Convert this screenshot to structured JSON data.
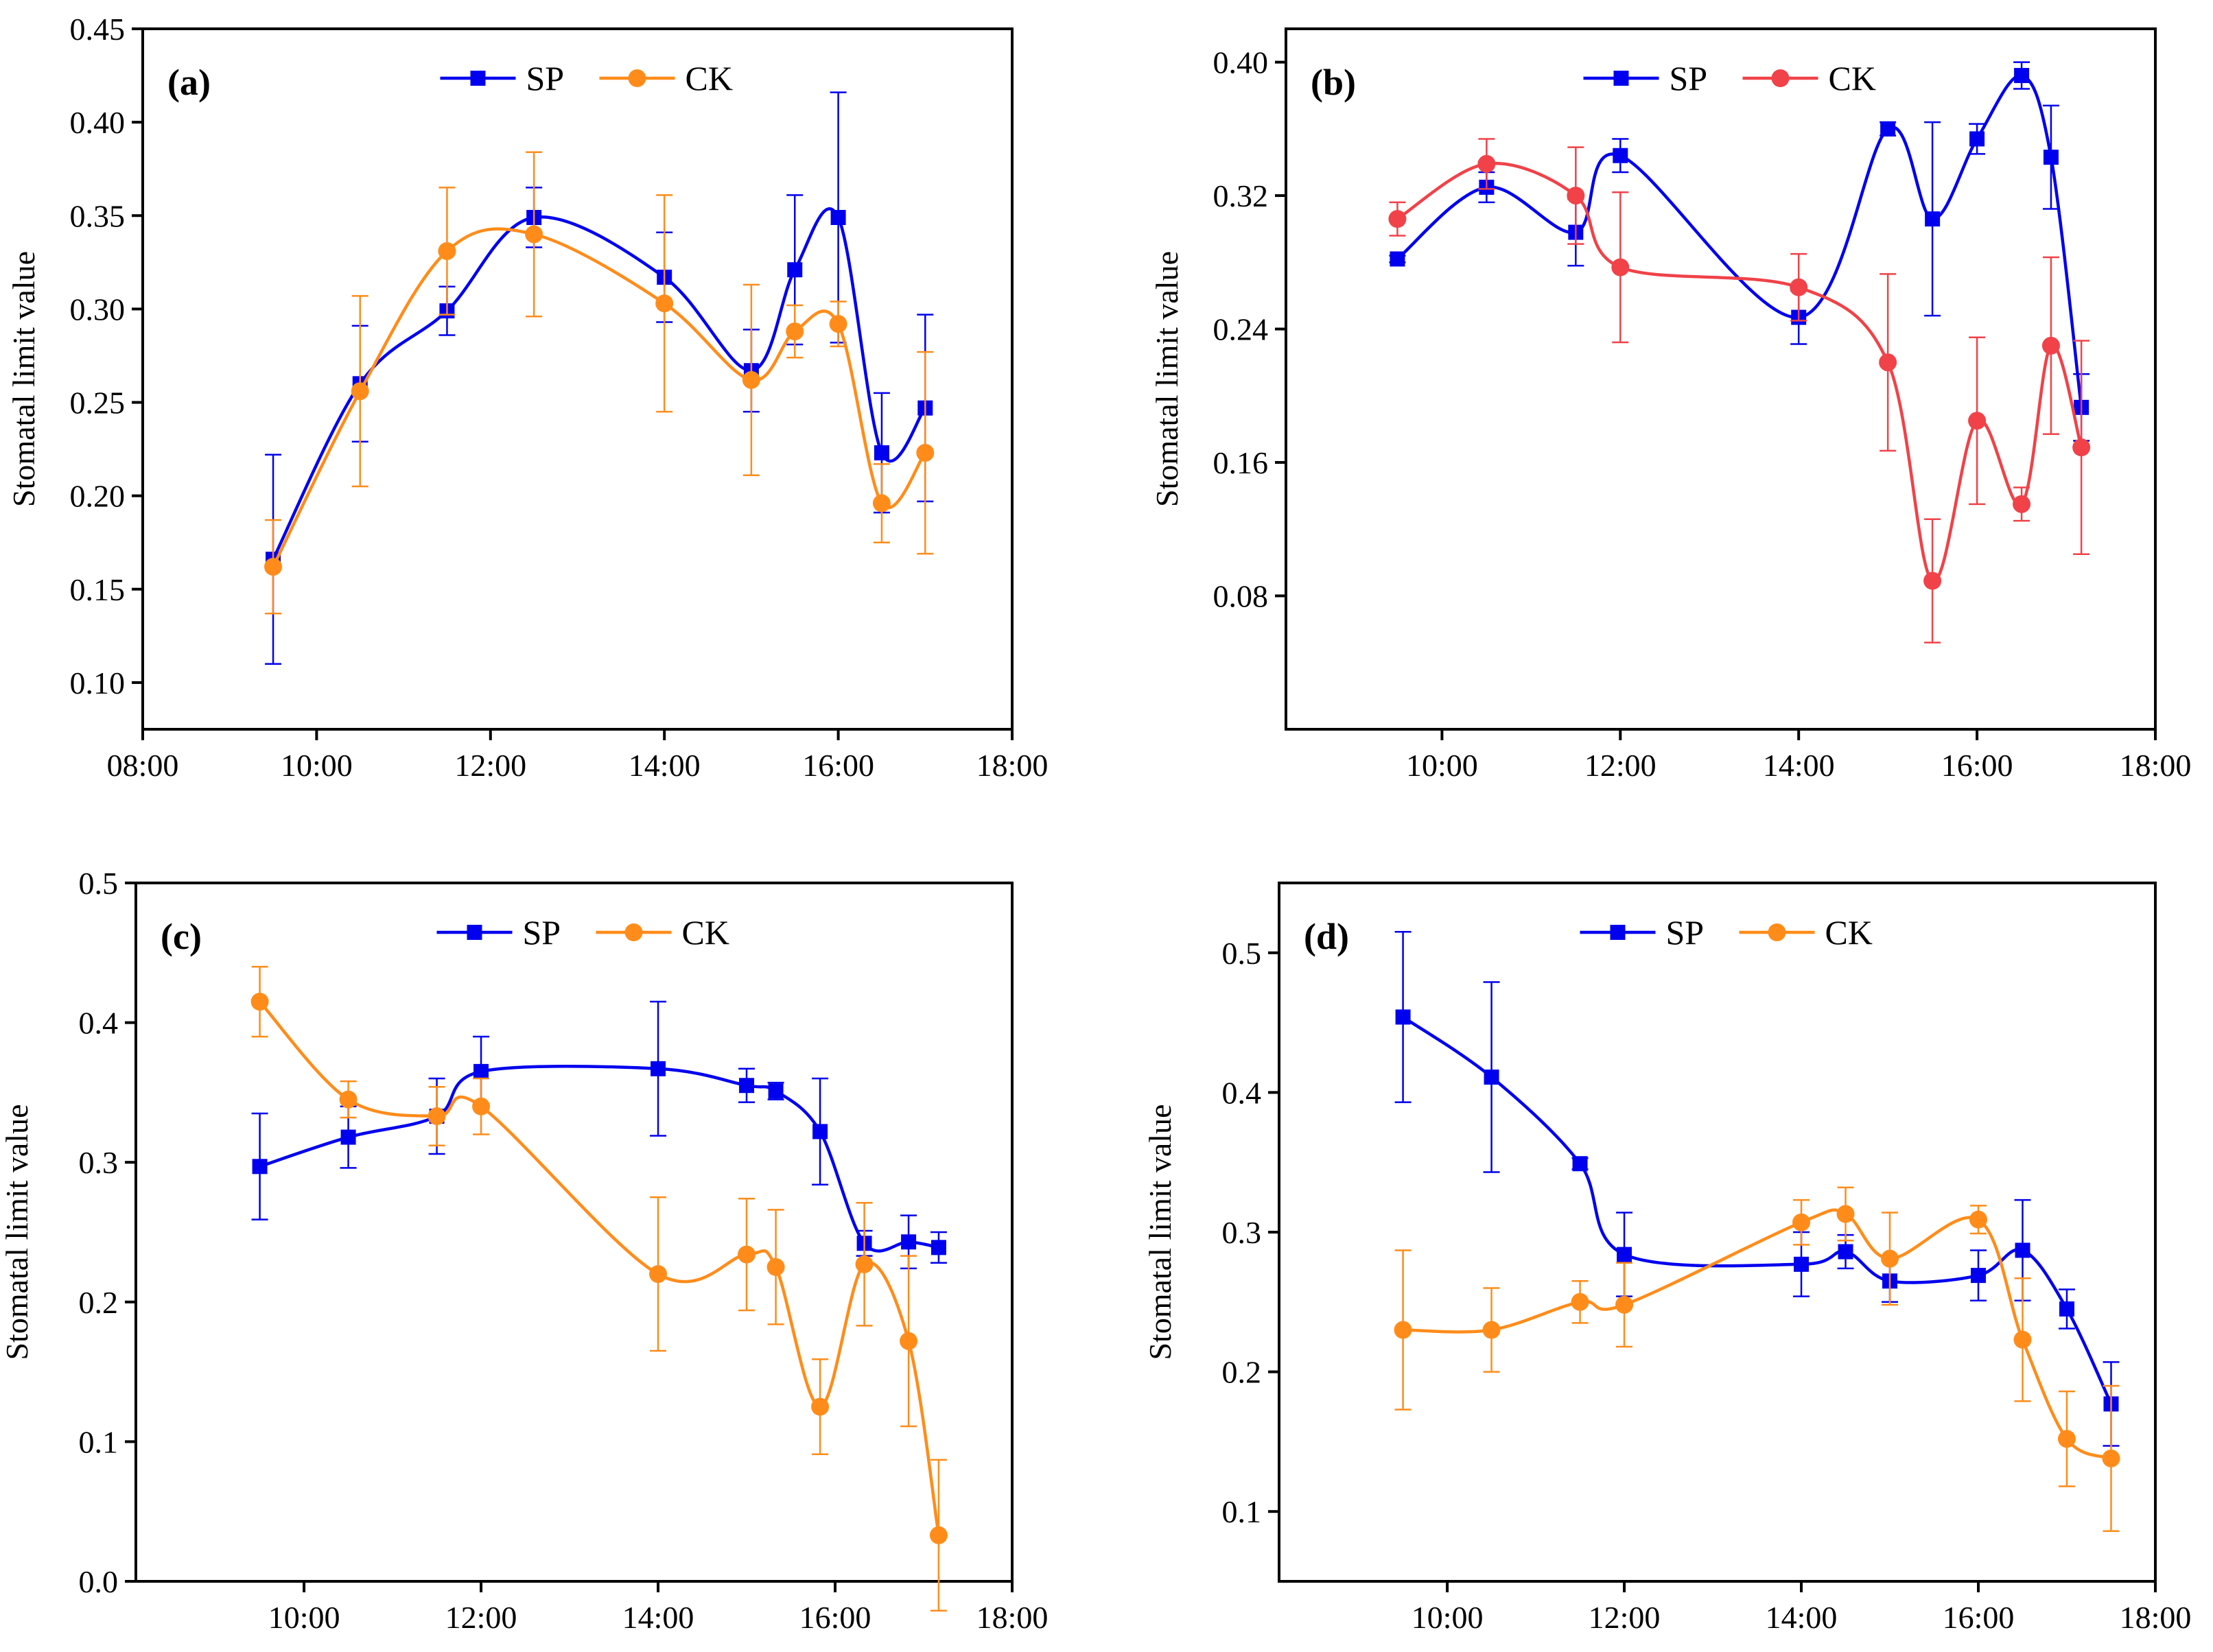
{
  "colors": {
    "SP": "#0000ee",
    "CK_orange": "#ff8c1a",
    "CK_red": "#f04248",
    "axis": "#000000"
  },
  "chart_data": [
    {
      "type": "line",
      "panel_label": "(a)",
      "ylabel": "Stomatal limit value",
      "xlim": [
        8,
        18
      ],
      "xticks": [
        8,
        10,
        12,
        14,
        16,
        18
      ],
      "xtick_labels": [
        "08:00",
        "10:00",
        "12:00",
        "14:00",
        "16:00",
        "18:00"
      ],
      "ylim": [
        0.075,
        0.45
      ],
      "yticks": [
        0.1,
        0.15,
        0.2,
        0.25,
        0.3,
        0.35,
        0.4,
        0.45
      ],
      "ytick_labels": [
        "0.10",
        "0.15",
        "0.20",
        "0.25",
        "0.30",
        "0.35",
        "0.40",
        "0.45"
      ],
      "legend_position": "top-center",
      "series": [
        {
          "name": "SP",
          "color": "#0000ee",
          "marker": "square",
          "x": [
            9.5,
            10.5,
            11.5,
            12.5,
            14,
            15,
            15.5,
            16,
            16.5,
            17
          ],
          "y": [
            0.166,
            0.26,
            0.299,
            0.349,
            0.317,
            0.267,
            0.321,
            0.349,
            0.223,
            0.247
          ],
          "err": [
            0.056,
            0.031,
            0.013,
            0.016,
            0.024,
            0.022,
            0.04,
            0.067,
            0.032,
            0.05
          ]
        },
        {
          "name": "CK",
          "color": "#ff8c1a",
          "marker": "circle",
          "x": [
            9.5,
            10.5,
            11.5,
            12.5,
            14,
            15,
            15.5,
            16,
            16.5,
            17
          ],
          "y": [
            0.162,
            0.256,
            0.331,
            0.34,
            0.303,
            0.262,
            0.288,
            0.292,
            0.196,
            0.223
          ],
          "err": [
            0.025,
            0.051,
            0.034,
            0.044,
            0.058,
            0.051,
            0.014,
            0.012,
            0.021,
            0.054
          ]
        }
      ]
    },
    {
      "type": "line",
      "panel_label": "(b)",
      "ylabel": "Stomatal limit value",
      "xlim": [
        8.25,
        18
      ],
      "xticks": [
        10,
        12,
        14,
        16,
        18
      ],
      "xtick_labels": [
        "10:00",
        "12:00",
        "14:00",
        "16:00",
        "18:00"
      ],
      "ylim": [
        0.0,
        0.42
      ],
      "yticks": [
        0.08,
        0.16,
        0.24,
        0.32,
        0.4
      ],
      "ytick_labels": [
        "0.08",
        "0.16",
        "0.24",
        "0.32",
        "0.40"
      ],
      "legend_position": "top-center",
      "series": [
        {
          "name": "SP",
          "color": "#0000ee",
          "marker": "square",
          "x": [
            9.5,
            10.5,
            11.5,
            12,
            14,
            15,
            15.5,
            16,
            16.5,
            16.83,
            17.17
          ],
          "y": [
            0.282,
            0.325,
            0.298,
            0.344,
            0.247,
            0.36,
            0.306,
            0.354,
            0.392,
            0.343,
            0.193
          ],
          "err": [
            0.002,
            0.009,
            0.02,
            0.01,
            0.016,
            0.004,
            0.058,
            0.009,
            0.008,
            0.031,
            0.02
          ]
        },
        {
          "name": "CK",
          "color": "#f04248",
          "marker": "circle",
          "x": [
            9.5,
            10.5,
            11.5,
            12,
            14,
            15,
            15.5,
            16,
            16.5,
            16.83,
            17.17
          ],
          "y": [
            0.306,
            0.339,
            0.32,
            0.277,
            0.265,
            0.22,
            0.089,
            0.185,
            0.135,
            0.23,
            0.169
          ],
          "err": [
            0.01,
            0.015,
            0.029,
            0.045,
            0.02,
            0.053,
            0.037,
            0.05,
            0.01,
            0.053,
            0.064
          ]
        }
      ]
    },
    {
      "type": "line",
      "panel_label": "(c)",
      "ylabel": "Stomatal limit value",
      "xlim": [
        8.1,
        18
      ],
      "xticks": [
        10,
        12,
        14,
        16,
        18
      ],
      "xtick_labels": [
        "10:00",
        "12:00",
        "14:00",
        "16:00",
        "18:00"
      ],
      "ylim": [
        0.0,
        0.5
      ],
      "yticks": [
        0.0,
        0.1,
        0.2,
        0.3,
        0.4,
        0.5
      ],
      "ytick_labels": [
        "0.0",
        "0.1",
        "0.2",
        "0.3",
        "0.4",
        "0.5"
      ],
      "legend_position": "top-center",
      "series": [
        {
          "name": "SP",
          "color": "#0000ee",
          "marker": "square",
          "x": [
            9.5,
            10.5,
            11.5,
            12,
            14,
            15,
            15.33,
            15.83,
            16.33,
            16.83,
            17.17
          ],
          "y": [
            0.297,
            0.318,
            0.333,
            0.365,
            0.367,
            0.355,
            0.351,
            0.322,
            0.242,
            0.243,
            0.239
          ],
          "err": [
            0.038,
            0.022,
            0.027,
            0.025,
            0.048,
            0.012,
            0.006,
            0.038,
            0.009,
            0.019,
            0.011
          ]
        },
        {
          "name": "CK",
          "color": "#ff8c1a",
          "marker": "circle",
          "x": [
            9.5,
            10.5,
            11.5,
            12,
            14,
            15,
            15.33,
            15.83,
            16.33,
            16.83,
            17.17
          ],
          "y": [
            0.415,
            0.345,
            0.333,
            0.34,
            0.22,
            0.234,
            0.225,
            0.125,
            0.227,
            0.172,
            0.033
          ],
          "err": [
            0.025,
            0.013,
            0.021,
            0.02,
            0.055,
            0.04,
            0.041,
            0.034,
            0.044,
            0.061,
            0.054
          ]
        }
      ]
    },
    {
      "type": "line",
      "panel_label": "(d)",
      "ylabel": "Stomatal limit value",
      "xlim": [
        8.1,
        18
      ],
      "xticks": [
        10,
        12,
        14,
        16,
        18
      ],
      "xtick_labels": [
        "10:00",
        "12:00",
        "14:00",
        "16:00",
        "18:00"
      ],
      "ylim": [
        0.05,
        0.55
      ],
      "yticks": [
        0.1,
        0.2,
        0.3,
        0.4,
        0.5
      ],
      "ytick_labels": [
        "0.1",
        "0.2",
        "0.3",
        "0.4",
        "0.5"
      ],
      "legend_position": "top-center",
      "series": [
        {
          "name": "SP",
          "color": "#0000ee",
          "marker": "square",
          "x": [
            9.5,
            10.5,
            11.5,
            12,
            14,
            14.5,
            15,
            16,
            16.5,
            17,
            17.5
          ],
          "y": [
            0.454,
            0.411,
            0.349,
            0.284,
            0.277,
            0.286,
            0.265,
            0.269,
            0.287,
            0.245,
            0.177
          ],
          "err": [
            0.061,
            0.068,
            0.004,
            0.03,
            0.023,
            0.012,
            0.015,
            0.018,
            0.036,
            0.014,
            0.03
          ]
        },
        {
          "name": "CK",
          "color": "#ff8c1a",
          "marker": "circle",
          "x": [
            9.5,
            10.5,
            11.5,
            12,
            14,
            14.5,
            15,
            16,
            16.5,
            17,
            17.5
          ],
          "y": [
            0.23,
            0.23,
            0.25,
            0.248,
            0.307,
            0.313,
            0.281,
            0.309,
            0.223,
            0.152,
            0.138
          ],
          "err": [
            0.057,
            0.03,
            0.015,
            0.03,
            0.016,
            0.019,
            0.033,
            0.01,
            0.044,
            0.034,
            0.052
          ]
        }
      ]
    }
  ]
}
